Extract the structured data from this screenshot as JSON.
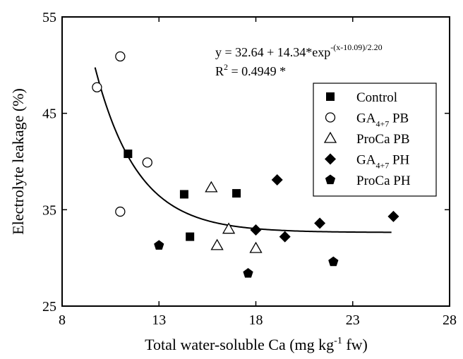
{
  "chart_data": {
    "type": "scatter",
    "title": "",
    "xlabel": "Total water-soluble Ca (mg kg⁻¹ fw)",
    "ylabel": "Electrolyte leakage (%)",
    "xlim": [
      8,
      28
    ],
    "ylim": [
      25,
      55
    ],
    "xticks": [
      8,
      13,
      18,
      23,
      28
    ],
    "yticks": [
      25,
      35,
      45,
      55
    ],
    "legend_position": "right",
    "series": [
      {
        "name": "Control",
        "marker": "filled-square",
        "points": [
          [
            11.4,
            40.8
          ],
          [
            14.3,
            36.6
          ],
          [
            14.6,
            32.2
          ],
          [
            17.0,
            36.7
          ]
        ]
      },
      {
        "name": "GA4+7 PB",
        "marker": "open-circle",
        "points": [
          [
            9.8,
            47.7
          ],
          [
            11.0,
            50.9
          ],
          [
            11.0,
            34.8
          ],
          [
            12.4,
            39.9
          ]
        ]
      },
      {
        "name": "ProCa PB",
        "marker": "open-triangle",
        "points": [
          [
            15.7,
            37.3
          ],
          [
            16.0,
            31.3
          ],
          [
            16.6,
            33.0
          ],
          [
            18.0,
            31.0
          ]
        ]
      },
      {
        "name": "GA4+7 PH",
        "marker": "filled-diamond",
        "points": [
          [
            18.0,
            32.9
          ],
          [
            19.1,
            38.1
          ],
          [
            19.5,
            32.2
          ],
          [
            21.3,
            33.6
          ],
          [
            25.1,
            34.3
          ]
        ]
      },
      {
        "name": "ProCa PH",
        "marker": "filled-pentagon",
        "points": [
          [
            13.0,
            31.3
          ],
          [
            17.6,
            28.4
          ],
          [
            22.0,
            29.6
          ]
        ]
      }
    ],
    "fit": {
      "equation_main": "y = 32.64 + 14.34*exp",
      "equation_exponent": "-(x-10.09)/2.20",
      "r2_label": "R",
      "r2_exponent": "2",
      "r2_value": " = 0.4949 *",
      "a": 32.64,
      "b": 14.34,
      "x0": 10.09,
      "c": 2.2,
      "x_range": [
        9.7,
        25.0
      ]
    },
    "legend": [
      {
        "base": "Control",
        "sub": "",
        "suffix": "",
        "marker": "filled-square"
      },
      {
        "base": "GA",
        "sub": "4+7",
        "suffix": " PB",
        "marker": "open-circle"
      },
      {
        "base": "ProCa PB",
        "sub": "",
        "suffix": "",
        "marker": "open-triangle"
      },
      {
        "base": "GA",
        "sub": "4+7",
        "suffix": " PH",
        "marker": "filled-diamond"
      },
      {
        "base": "ProCa PH",
        "sub": "",
        "suffix": "",
        "marker": "filled-pentagon"
      }
    ]
  }
}
